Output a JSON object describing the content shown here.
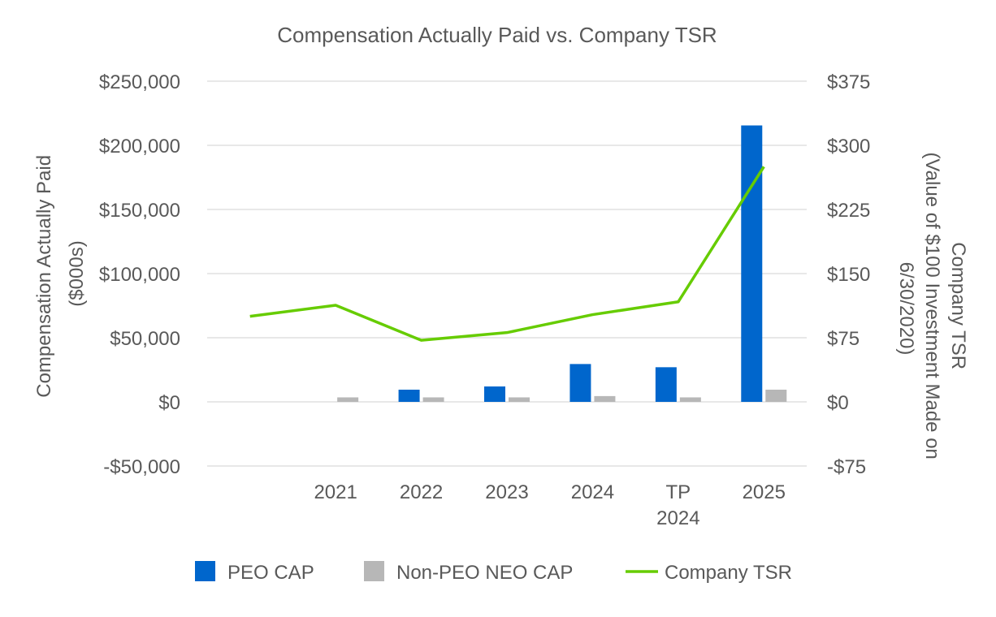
{
  "chart_data": {
    "type": "bar",
    "title": "Compensation Actually Paid vs. Company TSR",
    "categories": [
      {
        "lines": [
          "",
          ""
        ]
      },
      {
        "lines": [
          "2021",
          ""
        ]
      },
      {
        "lines": [
          "2022",
          ""
        ]
      },
      {
        "lines": [
          "2023",
          ""
        ]
      },
      {
        "lines": [
          "2024",
          ""
        ]
      },
      {
        "lines": [
          "TP",
          "2024"
        ]
      },
      {
        "lines": [
          "2025",
          ""
        ]
      }
    ],
    "ylabel_left": [
      "Compensation Actually Paid",
      "($000s)"
    ],
    "ylabel_right": [
      "Company TSR",
      "(Value of $100 Investment Made on",
      "6/30/2020)"
    ],
    "y_left": {
      "lim": [
        -50000,
        250000
      ],
      "ticks": [
        -50000,
        0,
        50000,
        100000,
        150000,
        200000,
        250000
      ],
      "tick_labels": [
        "-$50,000",
        "$0",
        "$50,000",
        "$100,000",
        "$150,000",
        "$200,000",
        "$250,000"
      ]
    },
    "y_right": {
      "lim": [
        -75,
        375
      ],
      "ticks": [
        -75,
        0,
        75,
        150,
        225,
        300,
        375
      ],
      "tick_labels": [
        "-$75",
        "$0",
        "$75",
        "$150",
        "$225",
        "$300",
        "$375"
      ]
    },
    "grid": true,
    "legend_position": "bottom",
    "series": [
      {
        "name": "PEO CAP",
        "type": "bar",
        "axis": "left",
        "color": "#0066CC",
        "values": [
          null,
          null,
          9500,
          12000,
          29500,
          27000,
          215500
        ]
      },
      {
        "name": "Non-PEO NEO CAP",
        "type": "bar",
        "axis": "left",
        "color": "#B7B7B7",
        "values": [
          null,
          3500,
          3500,
          3500,
          4500,
          3500,
          9500
        ]
      },
      {
        "name": "Company TSR",
        "type": "line",
        "axis": "right",
        "color": "#66CC00",
        "values": [
          100,
          113,
          72,
          81,
          102,
          117,
          275
        ]
      }
    ]
  }
}
